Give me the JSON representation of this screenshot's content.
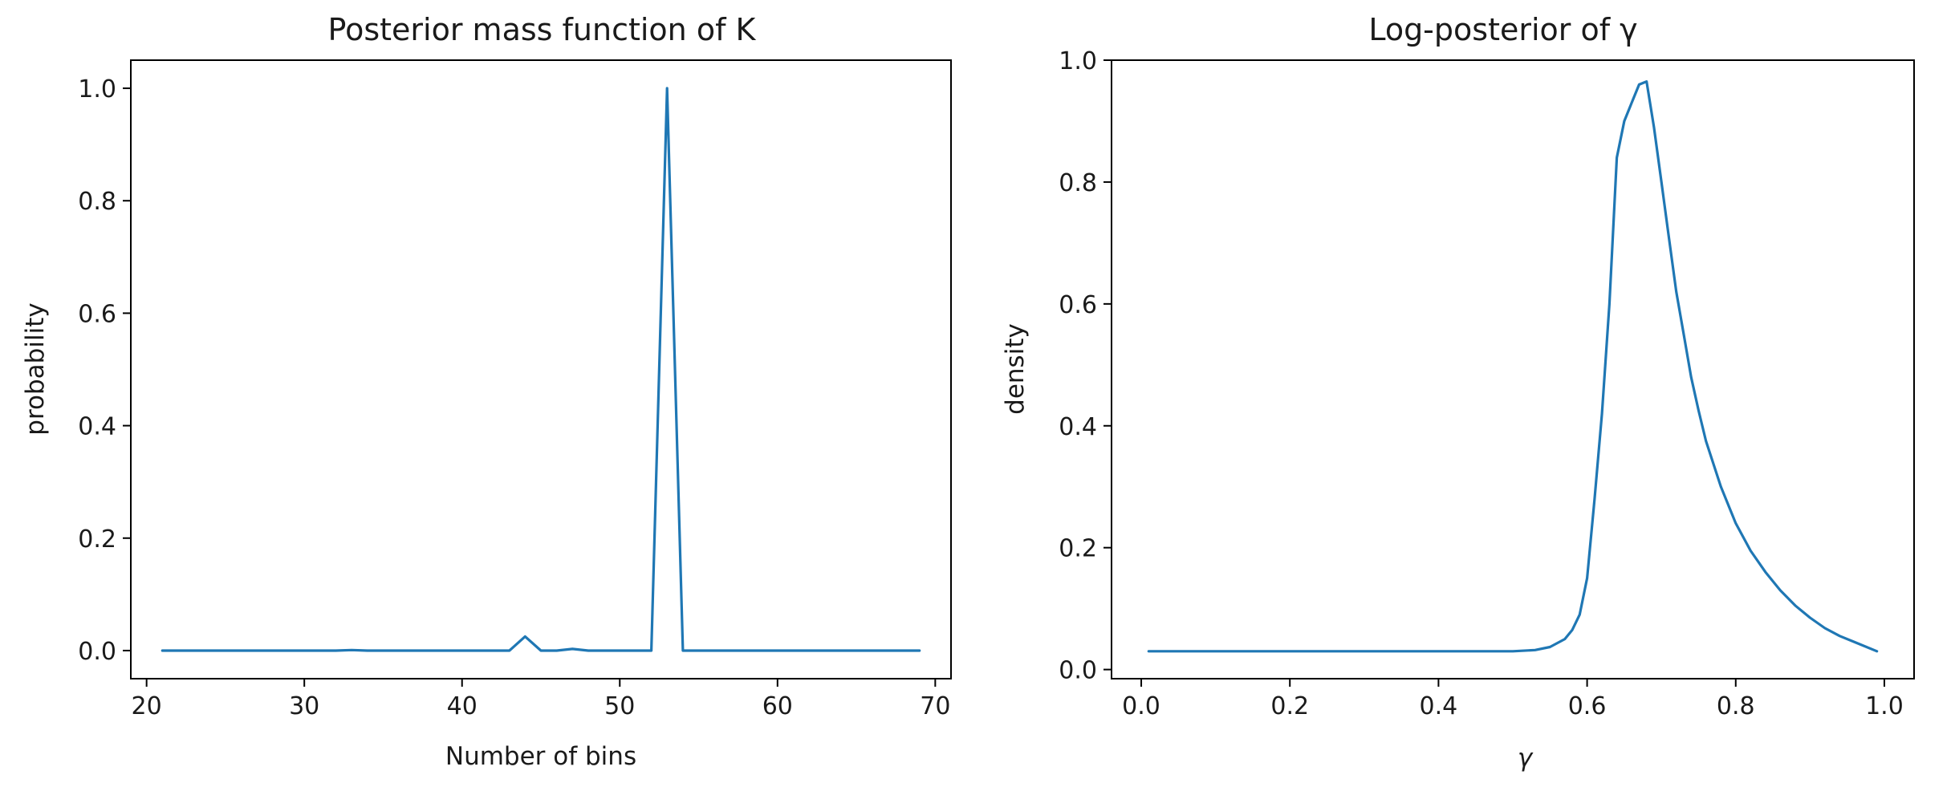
{
  "chart_data": [
    {
      "type": "line",
      "title": "Posterior mass function of K",
      "xlabel": "Number of bins",
      "ylabel": "probability",
      "xlim": [
        19,
        71
      ],
      "ylim": [
        -0.05,
        1.05
      ],
      "xticks": [
        20,
        30,
        40,
        50,
        60,
        70
      ],
      "xtick_labels": [
        "20",
        "30",
        "40",
        "50",
        "60",
        "70"
      ],
      "yticks": [
        0.0,
        0.2,
        0.4,
        0.6,
        0.8,
        1.0
      ],
      "ytick_labels": [
        "0.0",
        "0.2",
        "0.4",
        "0.6",
        "0.8",
        "1.0"
      ],
      "grid": false,
      "color": "#1f77b4",
      "series": [
        {
          "x": [
            21,
            22,
            23,
            24,
            25,
            26,
            27,
            28,
            29,
            30,
            31,
            32,
            33,
            34,
            35,
            36,
            37,
            38,
            39,
            40,
            41,
            42,
            43,
            44,
            45,
            46,
            47,
            48,
            49,
            50,
            51,
            52,
            53,
            54,
            55,
            56,
            57,
            58,
            59,
            60,
            61,
            62,
            63,
            64,
            65,
            66,
            67,
            68,
            69
          ],
          "y": [
            0,
            0,
            0,
            0,
            0,
            0,
            0,
            0,
            0,
            0,
            0,
            0,
            0.001,
            0,
            0,
            0,
            0,
            0,
            0,
            0,
            0,
            0,
            0,
            0.025,
            0,
            0,
            0.003,
            0,
            0,
            0,
            0,
            0,
            1.0,
            0,
            0,
            0,
            0,
            0,
            0,
            0,
            0,
            0,
            0,
            0,
            0,
            0,
            0,
            0,
            0
          ]
        }
      ]
    },
    {
      "type": "line",
      "title": "Log-posterior of γ",
      "xlabel": "γ",
      "ylabel": "density",
      "xlim": [
        -0.04,
        1.04
      ],
      "ylim": [
        -0.015,
        1.0
      ],
      "xticks": [
        0.0,
        0.2,
        0.4,
        0.6,
        0.8,
        1.0
      ],
      "xtick_labels": [
        "0.0",
        "0.2",
        "0.4",
        "0.6",
        "0.8",
        "1.0"
      ],
      "yticks": [
        0.0,
        0.2,
        0.4,
        0.6,
        0.8,
        1.0
      ],
      "ytick_labels": [
        "0.0",
        "0.2",
        "0.4",
        "0.6",
        "0.8",
        "1.0"
      ],
      "grid": false,
      "color": "#1f77b4",
      "series": [
        {
          "x": [
            0.01,
            0.1,
            0.2,
            0.3,
            0.4,
            0.5,
            0.53,
            0.55,
            0.57,
            0.58,
            0.59,
            0.6,
            0.61,
            0.62,
            0.63,
            0.64,
            0.65,
            0.66,
            0.67,
            0.68,
            0.69,
            0.7,
            0.71,
            0.72,
            0.73,
            0.74,
            0.75,
            0.76,
            0.78,
            0.8,
            0.82,
            0.84,
            0.86,
            0.88,
            0.9,
            0.92,
            0.94,
            0.96,
            0.99
          ],
          "y": [
            0.03,
            0.03,
            0.03,
            0.03,
            0.03,
            0.03,
            0.032,
            0.037,
            0.05,
            0.065,
            0.09,
            0.15,
            0.28,
            0.42,
            0.6,
            0.84,
            0.9,
            0.93,
            0.96,
            0.965,
            0.89,
            0.8,
            0.71,
            0.62,
            0.55,
            0.48,
            0.425,
            0.375,
            0.3,
            0.24,
            0.195,
            0.16,
            0.13,
            0.105,
            0.085,
            0.068,
            0.055,
            0.045,
            0.03
          ]
        }
      ]
    }
  ]
}
